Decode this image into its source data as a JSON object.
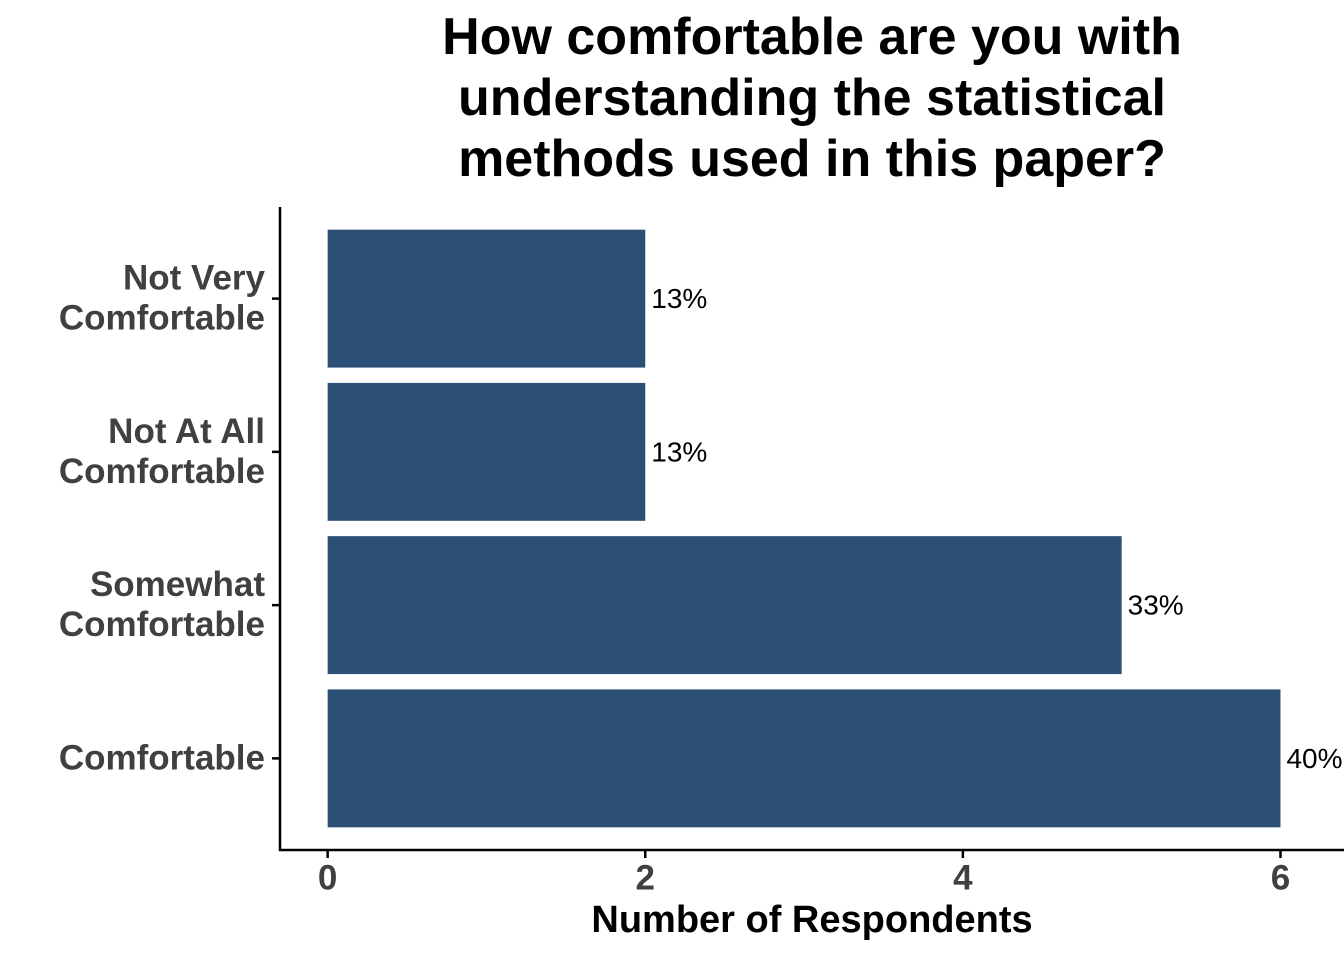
{
  "chart_data": {
    "type": "bar",
    "orientation": "horizontal",
    "title": "How comfortable are you with\nunderstanding the statistical\nmethods used in this paper?",
    "x_label": "Number of Respondents",
    "categories": [
      "Not Very\nComfortable",
      "Not At All\nComfortable",
      "Somewhat\nComfortable",
      "Comfortable"
    ],
    "values": [
      2,
      2,
      5,
      6
    ],
    "labels": [
      "13%",
      "13%",
      "33%",
      "40%"
    ],
    "color": "#2c5075",
    "xlim": [
      -0.3,
      6.4
    ],
    "xticks": [
      0,
      2,
      4,
      6
    ],
    "grid": false
  }
}
